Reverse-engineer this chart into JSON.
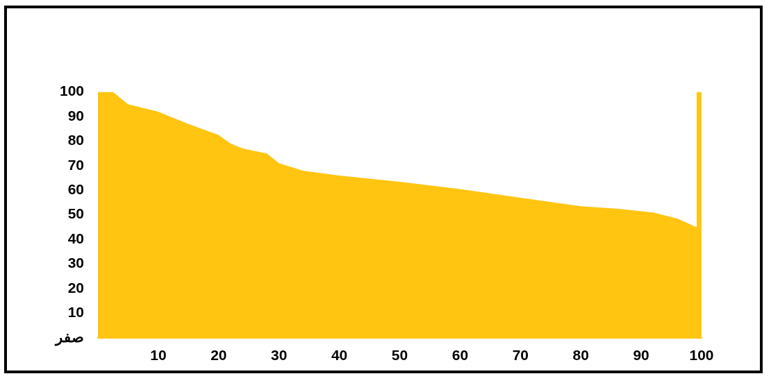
{
  "chart_data": {
    "type": "area",
    "color": "#ffc511",
    "x": [
      0,
      2.5,
      5,
      10,
      15,
      20,
      22,
      24,
      28,
      30,
      34,
      40,
      50,
      60,
      70,
      80,
      86,
      92,
      96,
      99.2,
      99.2,
      100
    ],
    "values": [
      100,
      100,
      95,
      92,
      87,
      82.5,
      79,
      77,
      75,
      71,
      68,
      66,
      63.5,
      60.5,
      57,
      53.5,
      52.5,
      51,
      48.5,
      45,
      100,
      100
    ],
    "xlim": [
      0,
      100
    ],
    "xticks": [
      10,
      20,
      30,
      40,
      50,
      60,
      70,
      80,
      90,
      100
    ],
    "ylim": [
      0,
      100
    ],
    "yticks": [
      {
        "value": 0,
        "label": "صفر"
      },
      10,
      20,
      30,
      40,
      50,
      60,
      70,
      80,
      90,
      100
    ]
  }
}
